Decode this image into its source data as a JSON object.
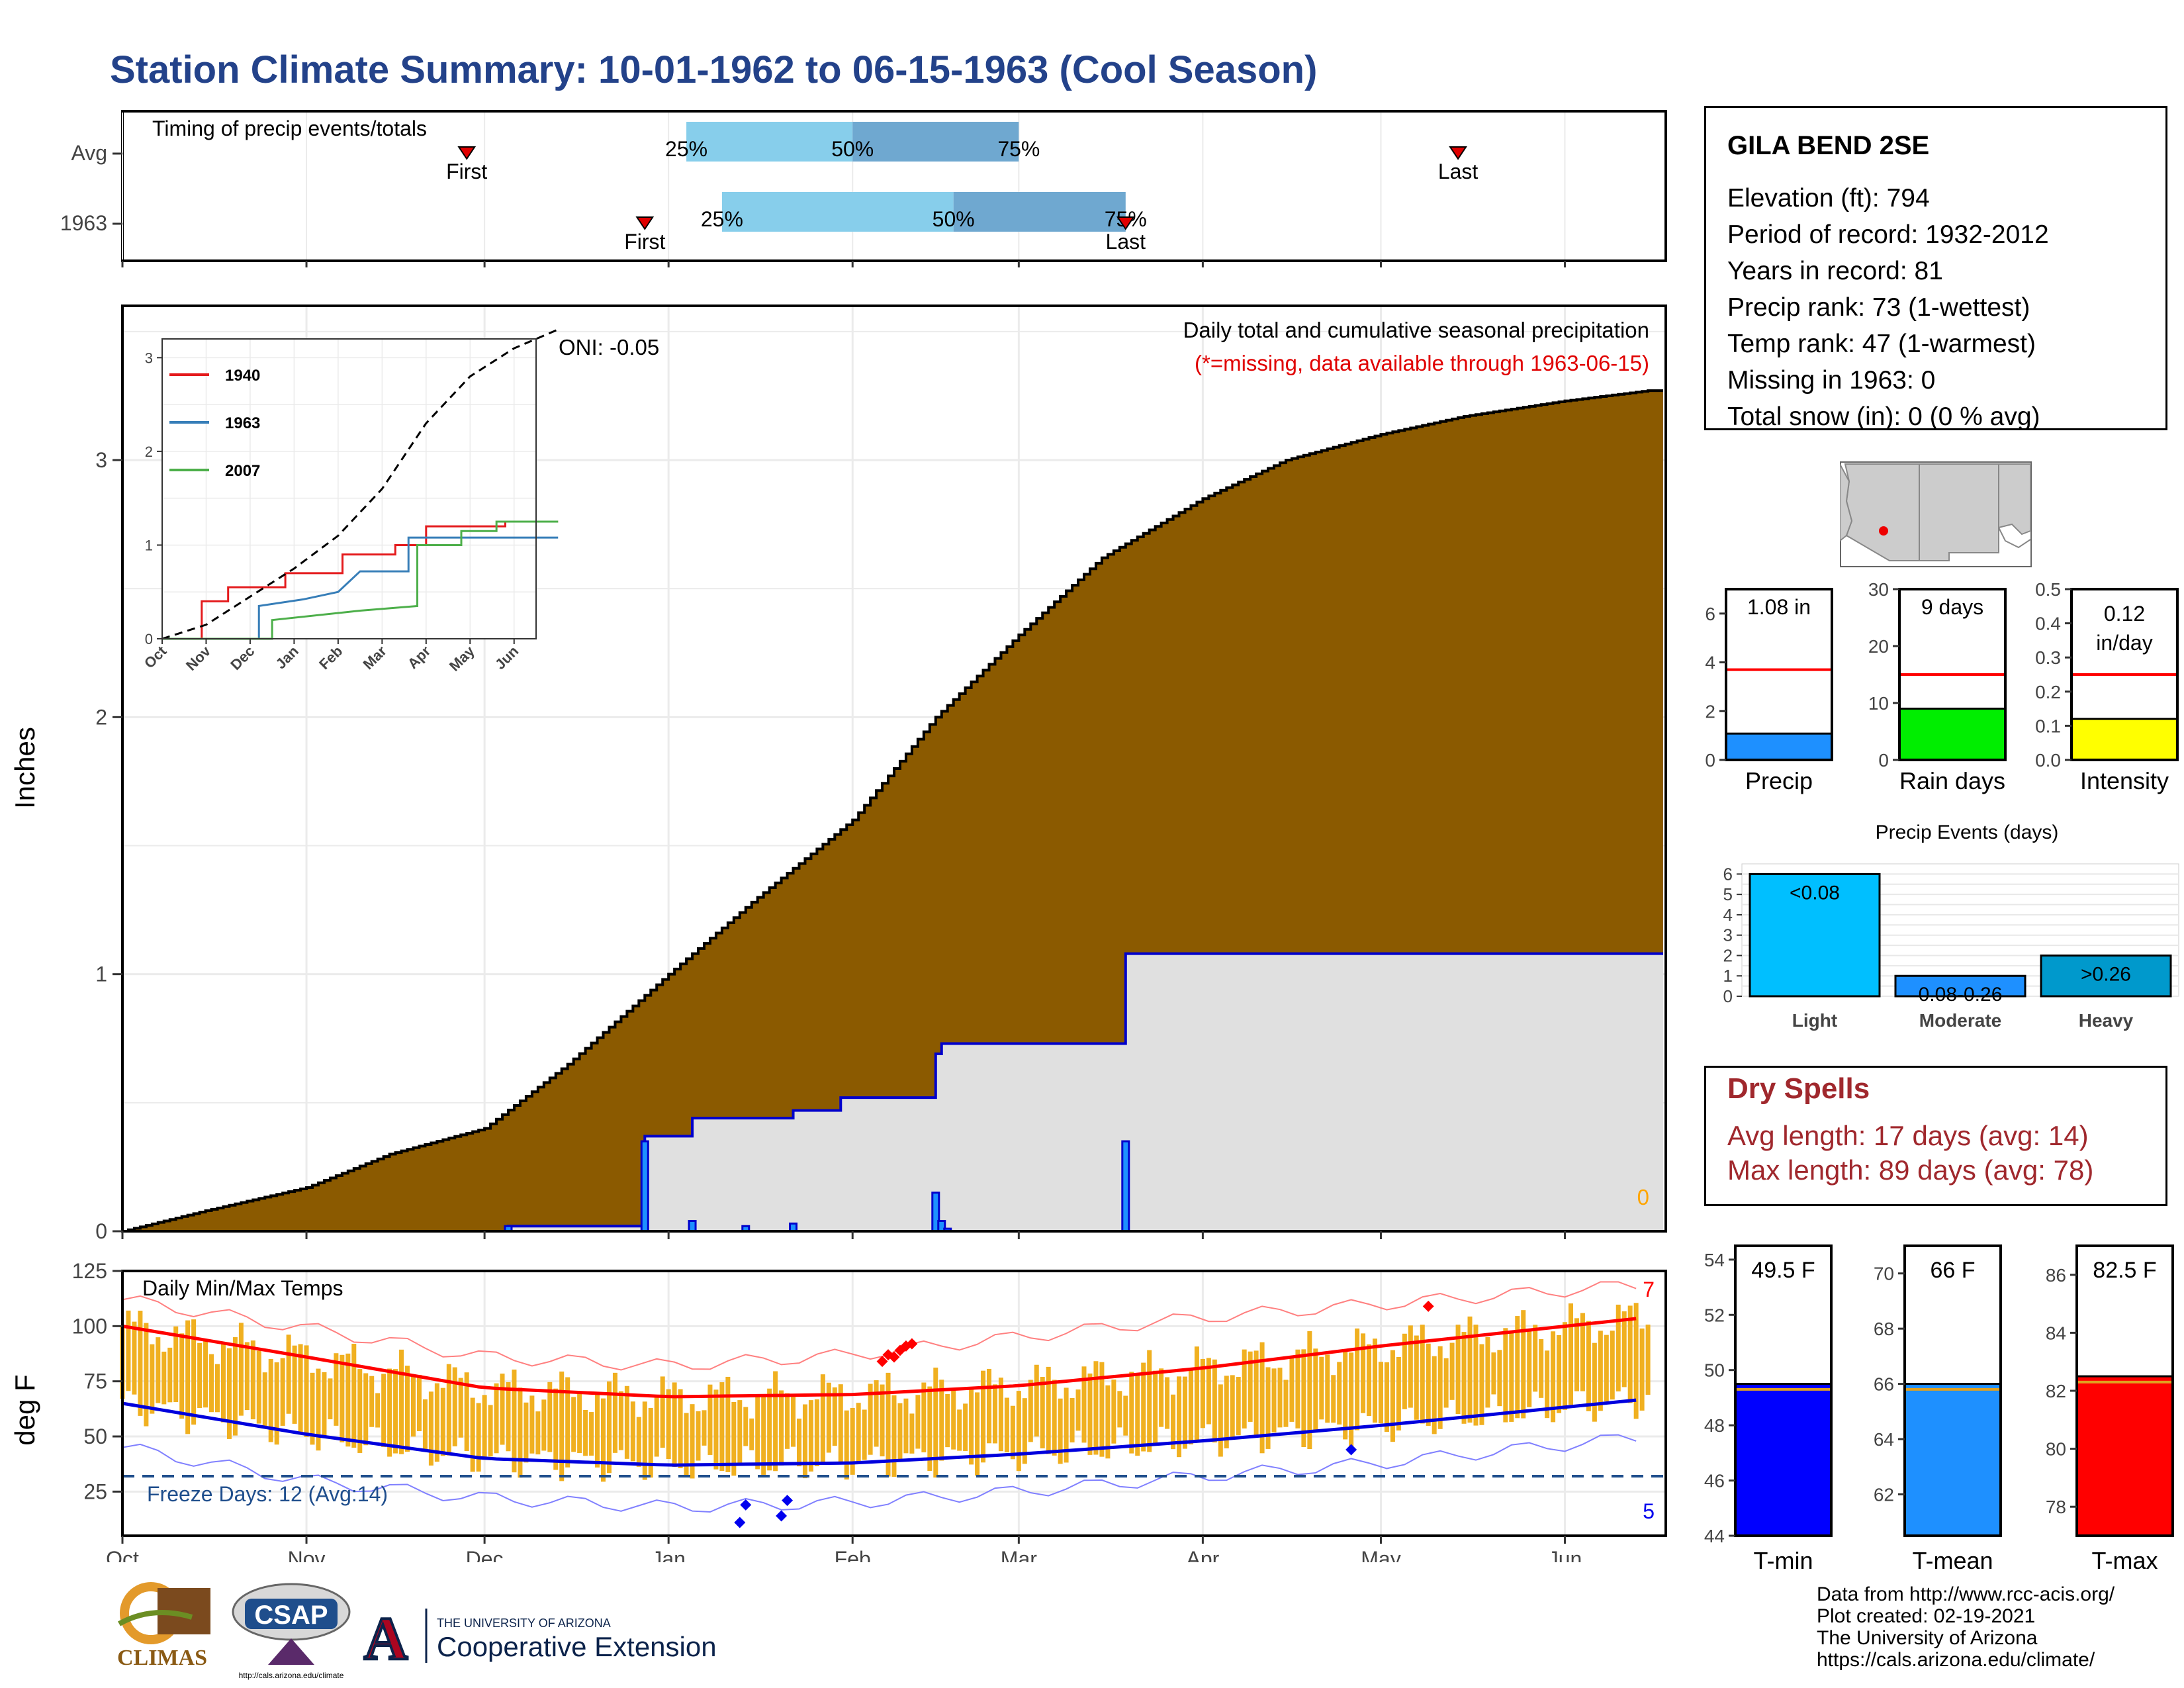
{
  "title": "Station Climate Summary: 10-01-1962 to 06-15-1963 (Cool Season)",
  "colors": {
    "title": "#23428a",
    "cumulative_fill": "#8b5a00",
    "step_line": "#0000cc",
    "gray_fill": "#e0e0e0",
    "temp_bar": "#f0b020",
    "max_avg": "#ff0000",
    "min_avg": "#0000dd",
    "freeze_line": "#1f4e8c",
    "iqr_light": "#87ceeb",
    "iqr_dark": "#6fa8d0",
    "marker": "#e00000",
    "dry_text": "#a0282d"
  },
  "timing": {
    "label": "Timing of precip events/totals",
    "rows": [
      {
        "label": "Avg",
        "first": "First",
        "last": "Last",
        "p25": "25%",
        "p50": "50%",
        "p75": "75%"
      },
      {
        "label": "1963",
        "first": "First",
        "last": "Last",
        "p25": "25%",
        "p50": "50%",
        "p75": "75%"
      }
    ]
  },
  "station": {
    "name": "GILA BEND 2SE",
    "lines": [
      "Elevation (ft): 794",
      "Period of record: 1932-2012",
      "Years in record: 81",
      "Precip rank: 73 (1-wettest)",
      "Temp rank: 47 (1-warmest)",
      "Missing in 1963: 0",
      "Total snow (in): 0 (0 % avg)"
    ]
  },
  "precip_panel": {
    "ylabel": "Inches",
    "annotation_title": "Daily total and cumulative seasonal precipitation",
    "annotation_missing": "(*=missing, data available through 1963-06-15)",
    "oni": "ONI: -0.05",
    "missing_count": "0",
    "y_ticks": [
      "0",
      "1",
      "2",
      "3"
    ]
  },
  "inset": {
    "y_ticks": [
      "0",
      "1",
      "2",
      "3"
    ],
    "x_ticks": [
      "Oct",
      "Nov",
      "Dec",
      "Jan",
      "Feb",
      "Mar",
      "Apr",
      "May",
      "Jun"
    ],
    "legend": [
      {
        "name": "1940",
        "color": "#e41a1c"
      },
      {
        "name": "1963",
        "color": "#377eb8"
      },
      {
        "name": "2007",
        "color": "#4daf4a"
      }
    ]
  },
  "temp_panel": {
    "ylabel": "deg F",
    "label": "Daily Min/Max Temps",
    "freeze": "Freeze Days: 12 (Avg:14)",
    "max_count": "7",
    "min_count": "5",
    "y_ticks": [
      "25",
      "50",
      "75",
      "100",
      "125"
    ],
    "x_ticks": [
      "Oct",
      "Nov",
      "Dec",
      "Jan",
      "Feb",
      "Mar",
      "Apr",
      "May",
      "Jun"
    ]
  },
  "mini_bars": [
    {
      "label": "Precip",
      "value_text": "1.08 in",
      "ticks": [
        "0",
        "2",
        "4",
        "6"
      ],
      "color": "#1e90ff"
    },
    {
      "label": "Rain days",
      "value_text": "9 days",
      "ticks": [
        "0",
        "10",
        "20",
        "30"
      ],
      "color": "#00ee00"
    },
    {
      "label": "Intensity",
      "value_text": "0.12",
      "value_text2": "in/day",
      "ticks": [
        "0.0",
        "0.1",
        "0.2",
        "0.3",
        "0.4",
        "0.5"
      ],
      "color": "#ffff00"
    }
  ],
  "events": {
    "title": "Precip Events (days)",
    "ticks": [
      "0",
      "1",
      "2",
      "3",
      "4",
      "5",
      "6"
    ],
    "bars": [
      {
        "label": "Light",
        "text": "<0.08"
      },
      {
        "label": "Moderate",
        "text": "0.08-0.26"
      },
      {
        "label": "Heavy",
        "text": ">0.26"
      }
    ]
  },
  "dry_spells": {
    "title": "Dry Spells",
    "avg_length": "Avg length: 17 days (avg: 14)",
    "max_length": "Max length: 89 days (avg: 78)"
  },
  "temp_bars": [
    {
      "label": "T-min",
      "value_text": "49.5 F",
      "ticks": [
        "44",
        "46",
        "48",
        "50",
        "52",
        "54"
      ],
      "color": "#0000ff"
    },
    {
      "label": "T-mean",
      "value_text": "66 F",
      "ticks": [
        "62",
        "64",
        "66",
        "68",
        "70"
      ],
      "color": "#1e90ff"
    },
    {
      "label": "T-max",
      "value_text": "82.5 F",
      "ticks": [
        "78",
        "80",
        "82",
        "84",
        "86"
      ],
      "color": "#ff0000"
    }
  ],
  "credits": [
    "Data from http://www.rcc-acis.org/",
    "Plot created: 02-19-2021",
    "The University of Arizona",
    "https://cals.arizona.edu/climate/"
  ],
  "logos": {
    "climas": "CLIMAS",
    "csap": "CSAP",
    "csap_url": "http://cals.arizona.edu/climate",
    "ua_small": "THE UNIVERSITY OF ARIZONA",
    "ua_big": "Cooperative Extension",
    "ua_letter": "A"
  },
  "chart_data": [
    {
      "type": "bar",
      "name": "timing",
      "rows": [
        {
          "label": "Avg",
          "first": "1962-11-28",
          "p25": "1963-01-04",
          "p50": "1963-02-01",
          "p75": "1963-03-01",
          "last": "1963-05-14"
        },
        {
          "label": "1963",
          "first": "1962-12-28",
          "p25": "1963-01-10",
          "p50": "1963-02-18",
          "p75": "1963-03-19",
          "last": "1963-03-19"
        }
      ]
    },
    {
      "type": "area",
      "name": "cumulative_precip",
      "ylabel": "Inches",
      "ylim": [
        0,
        3.6
      ],
      "average_cumulative": [
        {
          "date": "1962-10-01",
          "value": 0.0
        },
        {
          "date": "1962-10-15",
          "value": 0.08
        },
        {
          "date": "1962-11-01",
          "value": 0.17
        },
        {
          "date": "1962-11-15",
          "value": 0.3
        },
        {
          "date": "1962-12-01",
          "value": 0.4
        },
        {
          "date": "1962-12-15",
          "value": 0.65
        },
        {
          "date": "1963-01-01",
          "value": 1.0
        },
        {
          "date": "1963-01-15",
          "value": 1.28
        },
        {
          "date": "1963-02-01",
          "value": 1.6
        },
        {
          "date": "1963-02-15",
          "value": 2.0
        },
        {
          "date": "1963-03-01",
          "value": 2.32
        },
        {
          "date": "1963-03-15",
          "value": 2.62
        },
        {
          "date": "1963-04-01",
          "value": 2.85
        },
        {
          "date": "1963-04-15",
          "value": 3.0
        },
        {
          "date": "1963-05-01",
          "value": 3.1
        },
        {
          "date": "1963-05-15",
          "value": 3.17
        },
        {
          "date": "1963-06-01",
          "value": 3.23
        },
        {
          "date": "1963-06-15",
          "value": 3.27
        }
      ],
      "seasonal_cumulative_1963": [
        {
          "date": "1962-10-01",
          "value": 0.0
        },
        {
          "date": "1962-12-05",
          "value": 0.02
        },
        {
          "date": "1962-12-28",
          "value": 0.37
        },
        {
          "date": "1963-01-05",
          "value": 0.44
        },
        {
          "date": "1963-01-22",
          "value": 0.47
        },
        {
          "date": "1963-01-30",
          "value": 0.52
        },
        {
          "date": "1963-02-15",
          "value": 0.69
        },
        {
          "date": "1963-02-16",
          "value": 0.73
        },
        {
          "date": "1963-03-19",
          "value": 1.08
        },
        {
          "date": "1963-06-15",
          "value": 1.08
        }
      ],
      "daily_precip_1963": [
        {
          "date": "1962-12-05",
          "value": 0.02
        },
        {
          "date": "1962-12-28",
          "value": 0.35
        },
        {
          "date": "1963-01-05",
          "value": 0.04
        },
        {
          "date": "1963-01-14",
          "value": 0.02
        },
        {
          "date": "1963-01-22",
          "value": 0.03
        },
        {
          "date": "1963-02-15",
          "value": 0.15
        },
        {
          "date": "1963-02-16",
          "value": 0.04
        },
        {
          "date": "1963-02-17",
          "value": 0.01
        },
        {
          "date": "1963-03-19",
          "value": 0.35
        }
      ],
      "x_ticks": [
        "Oct",
        "Nov",
        "Dec",
        "Jan",
        "Feb",
        "Mar",
        "Apr",
        "May",
        "Jun"
      ]
    },
    {
      "type": "line",
      "name": "inset_cumulative",
      "x_ticks": [
        "Oct",
        "Nov",
        "Dec",
        "Jan",
        "Feb",
        "Mar",
        "Apr",
        "May",
        "Jun"
      ],
      "ylim": [
        0,
        3.3
      ],
      "series": [
        {
          "name": "1940",
          "points": [
            [
              0,
              0
            ],
            [
              0.9,
              0
            ],
            [
              0.9,
              0.4
            ],
            [
              1.5,
              0.4
            ],
            [
              1.5,
              0.55
            ],
            [
              2.8,
              0.55
            ],
            [
              2.8,
              0.7
            ],
            [
              4.1,
              0.7
            ],
            [
              4.1,
              0.9
            ],
            [
              5.3,
              0.9
            ],
            [
              5.3,
              1.0
            ],
            [
              6.0,
              1.0
            ],
            [
              6.0,
              1.2
            ],
            [
              7.8,
              1.2
            ],
            [
              7.8,
              1.25
            ],
            [
              9.0,
              1.25
            ]
          ]
        },
        {
          "name": "1963",
          "points": [
            [
              0,
              0
            ],
            [
              2.2,
              0
            ],
            [
              2.2,
              0.35
            ],
            [
              3.2,
              0.42
            ],
            [
              4.0,
              0.5
            ],
            [
              4.5,
              0.72
            ],
            [
              5.6,
              0.72
            ],
            [
              5.6,
              1.08
            ],
            [
              9.0,
              1.08
            ]
          ]
        },
        {
          "name": "2007",
          "points": [
            [
              0,
              0
            ],
            [
              2.5,
              0
            ],
            [
              2.5,
              0.2
            ],
            [
              4.5,
              0.3
            ],
            [
              5.8,
              0.35
            ],
            [
              5.8,
              1.0
            ],
            [
              6.8,
              1.0
            ],
            [
              6.8,
              1.15
            ],
            [
              7.6,
              1.15
            ],
            [
              7.6,
              1.25
            ],
            [
              9.0,
              1.25
            ]
          ]
        },
        {
          "name": "average",
          "points": [
            [
              0,
              0
            ],
            [
              1,
              0.15
            ],
            [
              2,
              0.45
            ],
            [
              3,
              0.75
            ],
            [
              4,
              1.1
            ],
            [
              5,
              1.6
            ],
            [
              6,
              2.3
            ],
            [
              7,
              2.8
            ],
            [
              8,
              3.1
            ],
            [
              9,
              3.3
            ]
          ]
        }
      ]
    },
    {
      "type": "bar",
      "name": "daily_temps",
      "ylabel": "deg F",
      "ylim": [
        5,
        125
      ],
      "avg_max": [
        {
          "date": "1962-10-01",
          "value": 100
        },
        {
          "date": "1962-11-01",
          "value": 86
        },
        {
          "date": "1962-12-01",
          "value": 72
        },
        {
          "date": "1963-01-01",
          "value": 68
        },
        {
          "date": "1963-02-01",
          "value": 69
        },
        {
          "date": "1963-03-01",
          "value": 73
        },
        {
          "date": "1963-04-01",
          "value": 81
        },
        {
          "date": "1963-05-01",
          "value": 91
        },
        {
          "date": "1963-06-15",
          "value": 104
        }
      ],
      "avg_min": [
        {
          "date": "1962-10-01",
          "value": 65
        },
        {
          "date": "1962-11-01",
          "value": 51
        },
        {
          "date": "1962-12-01",
          "value": 40
        },
        {
          "date": "1963-01-01",
          "value": 37
        },
        {
          "date": "1963-02-01",
          "value": 38
        },
        {
          "date": "1963-03-01",
          "value": 42
        },
        {
          "date": "1963-04-01",
          "value": 48
        },
        {
          "date": "1963-05-01",
          "value": 55
        },
        {
          "date": "1963-06-15",
          "value": 67
        }
      ],
      "record_max": [
        {
          "date": "1962-10-01",
          "value": 112
        },
        {
          "date": "1962-11-01",
          "value": 99
        },
        {
          "date": "1962-12-01",
          "value": 86
        },
        {
          "date": "1963-01-01",
          "value": 82
        },
        {
          "date": "1963-02-01",
          "value": 87
        },
        {
          "date": "1963-03-01",
          "value": 95
        },
        {
          "date": "1963-04-01",
          "value": 104
        },
        {
          "date": "1963-05-01",
          "value": 110
        },
        {
          "date": "1963-06-15",
          "value": 119
        }
      ],
      "record_min": [
        {
          "date": "1962-10-01",
          "value": 45
        },
        {
          "date": "1962-11-01",
          "value": 30
        },
        {
          "date": "1962-12-01",
          "value": 22
        },
        {
          "date": "1963-01-01",
          "value": 18
        },
        {
          "date": "1963-02-01",
          "value": 20
        },
        {
          "date": "1963-03-01",
          "value": 25
        },
        {
          "date": "1963-04-01",
          "value": 32
        },
        {
          "date": "1963-05-01",
          "value": 38
        },
        {
          "date": "1963-06-15",
          "value": 50
        }
      ],
      "freeze_threshold": 32,
      "record_highs": [
        {
          "date": "1963-02-06",
          "value": 84
        },
        {
          "date": "1963-02-07",
          "value": 87
        },
        {
          "date": "1963-02-08",
          "value": 86
        },
        {
          "date": "1963-02-09",
          "value": 89
        },
        {
          "date": "1963-02-10",
          "value": 91
        },
        {
          "date": "1963-02-11",
          "value": 92
        },
        {
          "date": "1963-05-09",
          "value": 109
        }
      ],
      "record_lows": [
        {
          "date": "1963-01-13",
          "value": 11
        },
        {
          "date": "1963-01-14",
          "value": 19
        },
        {
          "date": "1963-01-20",
          "value": 14
        },
        {
          "date": "1963-01-21",
          "value": 21
        },
        {
          "date": "1963-04-26",
          "value": 44
        }
      ]
    },
    {
      "type": "bar",
      "name": "precip_total",
      "categories": [
        "1963",
        "average"
      ],
      "values": [
        1.08,
        3.7
      ],
      "ylim": [
        0,
        7
      ]
    },
    {
      "type": "bar",
      "name": "rain_days",
      "categories": [
        "1963",
        "average"
      ],
      "values": [
        9,
        15
      ],
      "ylim": [
        0,
        30
      ]
    },
    {
      "type": "bar",
      "name": "intensity",
      "categories": [
        "1963",
        "average"
      ],
      "values": [
        0.12,
        0.25
      ],
      "ylim": [
        0,
        0.5
      ]
    },
    {
      "type": "bar",
      "name": "precip_events",
      "title": "Precip Events (days)",
      "categories": [
        "Light",
        "Moderate",
        "Heavy"
      ],
      "values": [
        6,
        1,
        2
      ],
      "ylim": [
        0,
        6.5
      ]
    },
    {
      "type": "bar",
      "name": "t_min",
      "categories": [
        "1963",
        "average"
      ],
      "values": [
        49.5,
        49.3
      ],
      "ylim": [
        44,
        54.5
      ]
    },
    {
      "type": "bar",
      "name": "t_mean",
      "categories": [
        "1963",
        "average"
      ],
      "values": [
        66,
        65.8
      ],
      "ylim": [
        60.5,
        71
      ]
    },
    {
      "type": "bar",
      "name": "t_max",
      "categories": [
        "1963",
        "average"
      ],
      "values": [
        82.5,
        82.3
      ],
      "ylim": [
        77,
        87
      ]
    }
  ]
}
